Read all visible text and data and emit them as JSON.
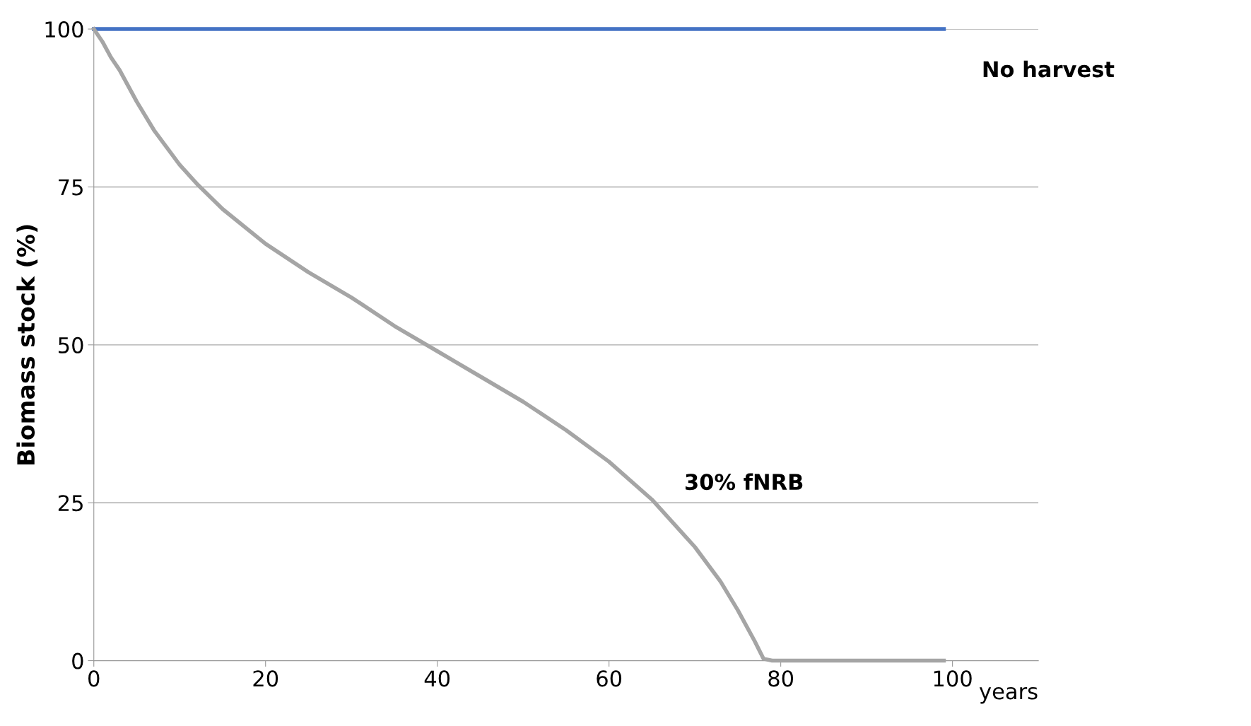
{
  "chart_data": {
    "type": "line",
    "ylabel": "Biomass stock (%)",
    "xlabel": "years",
    "xlim": [
      0,
      110
    ],
    "xticks": [
      0,
      20,
      40,
      60,
      80,
      100
    ],
    "ylim": [
      0,
      100
    ],
    "yticks": [
      0,
      25,
      50,
      75,
      100
    ],
    "grid": "y",
    "legend": false,
    "marker": "none",
    "line_style": "solid",
    "series": [
      {
        "name": "No harvest",
        "color": "#4472c4",
        "x": [
          0,
          99
        ],
        "values": [
          100,
          100
        ]
      },
      {
        "name": "30% fNRB",
        "color": "#a5a5a5",
        "x": [
          0,
          1,
          2,
          3,
          5,
          7,
          10,
          12,
          15,
          20,
          25,
          30,
          35,
          40,
          45,
          50,
          55,
          60,
          65,
          70,
          73,
          75,
          77,
          78,
          79,
          99
        ],
        "values": [
          100,
          98,
          95.5,
          93.5,
          88.5,
          84,
          78.5,
          75.5,
          71.5,
          66,
          61.5,
          57.5,
          53,
          49,
          45,
          41,
          36.5,
          31.5,
          25.5,
          18,
          12.5,
          8,
          3,
          0.3,
          0,
          0
        ]
      }
    ]
  }
}
